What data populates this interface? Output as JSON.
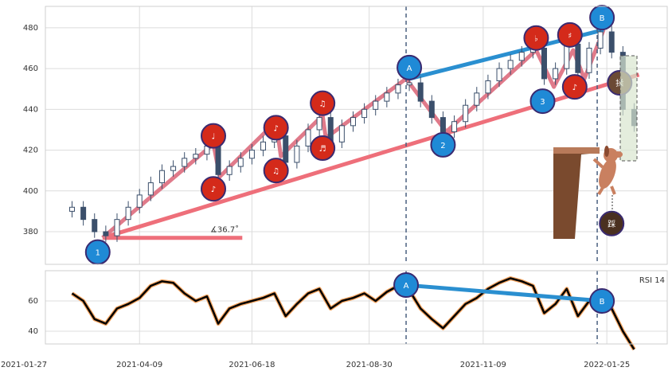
{
  "chart_data": [
    {
      "type": "candlestick",
      "color": "#3b4f6b",
      "xlim": [
        "2021-01-27",
        "2022-02-14"
      ],
      "ylim": [
        364,
        490.5
      ],
      "yticks": [
        380,
        400,
        420,
        440,
        460,
        480
      ],
      "grid": true,
      "x": [
        "2021-02-26",
        "2021-03-05",
        "2021-03-12",
        "2021-03-19",
        "2021-03-26",
        "2021-04-02",
        "2021-04-09",
        "2021-04-16",
        "2021-04-23",
        "2021-04-30",
        "2021-05-07",
        "2021-05-14",
        "2021-05-21",
        "2021-05-28",
        "2021-06-04",
        "2021-06-11",
        "2021-06-18",
        "2021-06-25",
        "2021-07-02",
        "2021-07-09",
        "2021-07-16",
        "2021-07-23",
        "2021-07-30",
        "2021-08-06",
        "2021-08-13",
        "2021-08-20",
        "2021-08-27",
        "2021-09-03",
        "2021-09-10",
        "2021-09-17",
        "2021-09-24",
        "2021-10-01",
        "2021-10-08",
        "2021-10-15",
        "2021-10-22",
        "2021-10-29",
        "2021-11-05",
        "2021-11-12",
        "2021-11-19",
        "2021-11-26",
        "2021-12-03",
        "2021-12-10",
        "2021-12-17",
        "2021-12-24",
        "2021-12-31",
        "2022-01-07",
        "2022-01-14",
        "2022-01-21",
        "2022-01-28",
        "2022-02-04",
        "2022-02-11"
      ],
      "open": [
        390,
        392,
        386,
        380,
        378,
        386,
        392,
        398,
        404,
        410,
        412,
        416,
        418,
        422,
        408,
        412,
        416,
        420,
        424,
        427,
        414,
        422,
        430,
        436,
        424,
        432,
        436,
        440,
        444,
        448,
        452,
        453,
        444,
        436,
        429,
        434,
        442,
        448,
        454,
        460,
        464,
        468,
        470,
        455,
        460,
        472,
        458,
        470,
        478,
        468,
        440
      ],
      "high": [
        395,
        395,
        389,
        383,
        389,
        395,
        401,
        407,
        413,
        415,
        419,
        421,
        425,
        425,
        415,
        419,
        423,
        427,
        430,
        430,
        425,
        433,
        439,
        439,
        435,
        439,
        443,
        447,
        451,
        455,
        456,
        456,
        447,
        439,
        437,
        445,
        451,
        457,
        463,
        467,
        471,
        473,
        473,
        463,
        475,
        475,
        473,
        481,
        481,
        471,
        443
      ],
      "low": [
        387,
        383,
        377,
        375,
        375,
        383,
        389,
        395,
        401,
        407,
        409,
        413,
        415,
        405,
        405,
        409,
        413,
        417,
        421,
        411,
        411,
        419,
        427,
        421,
        421,
        429,
        433,
        437,
        441,
        445,
        449,
        441,
        433,
        426,
        426,
        431,
        439,
        445,
        451,
        457,
        461,
        465,
        452,
        452,
        457,
        455,
        455,
        467,
        465,
        437,
        429
      ],
      "close": [
        392,
        386,
        380,
        378,
        386,
        392,
        398,
        404,
        410,
        412,
        416,
        418,
        422,
        408,
        412,
        416,
        420,
        424,
        427,
        414,
        422,
        430,
        436,
        424,
        432,
        436,
        440,
        444,
        448,
        452,
        453,
        444,
        436,
        429,
        434,
        442,
        448,
        454,
        460,
        464,
        468,
        470,
        455,
        460,
        472,
        458,
        470,
        478,
        468,
        440,
        432
      ],
      "vlines": [
        "2021-09-22",
        "2022-01-19"
      ],
      "trend_lines": [
        {
          "color": "#ee6f7a",
          "points": [
            {
              "x": "2021-03-17",
              "y": 377
            },
            {
              "x": "2022-02-14",
              "y": 457
            }
          ]
        },
        {
          "color": "#ee6f7a",
          "points": [
            {
              "x": "2021-03-17",
              "y": 377
            },
            {
              "x": "2021-06-12",
              "y": 377
            }
          ]
        },
        {
          "color": "#e07a8a",
          "points": [
            {
              "x": "2021-03-17",
              "y": 377
            },
            {
              "x": "2021-05-25",
              "y": 423
            },
            {
              "x": "2021-05-29",
              "y": 407
            },
            {
              "x": "2021-07-03",
              "y": 434
            },
            {
              "x": "2021-07-06",
              "y": 417
            },
            {
              "x": "2021-08-01",
              "y": 437
            },
            {
              "x": "2021-08-03",
              "y": 426
            },
            {
              "x": "2021-09-22",
              "y": 455
            },
            {
              "x": "2021-10-17",
              "y": 429
            },
            {
              "x": "2021-12-12",
              "y": 469
            },
            {
              "x": "2021-12-23",
              "y": 451
            },
            {
              "x": "2022-01-04",
              "y": 469
            },
            {
              "x": "2022-01-11",
              "y": 455
            },
            {
              "x": "2022-01-23",
              "y": 479
            }
          ]
        },
        {
          "color": "#2a8fd0",
          "points": [
            {
              "x": "2021-09-24",
              "y": 455
            },
            {
              "x": "2022-01-23",
              "y": 479
            }
          ]
        }
      ],
      "annotation": {
        "text": "∡36.7˚",
        "x": "2021-05-23",
        "y": 381,
        "color": "#ee6f7a"
      },
      "markers": [
        {
          "label": "1",
          "x": "2021-03-14",
          "y": 370,
          "color": "#1f8ad6"
        },
        {
          "label": "♩",
          "x": "2021-05-25",
          "y": 427,
          "color": "#d42a1a"
        },
        {
          "label": "♪",
          "x": "2021-05-25",
          "y": 401,
          "color": "#d42a1a"
        },
        {
          "label": "♪",
          "x": "2021-07-03",
          "y": 431,
          "color": "#d42a1a"
        },
        {
          "label": "♫",
          "x": "2021-07-03",
          "y": 410,
          "color": "#d42a1a"
        },
        {
          "label": "♫",
          "x": "2021-08-01",
          "y": 443,
          "color": "#d42a1a"
        },
        {
          "label": "♬",
          "x": "2021-08-01",
          "y": 421,
          "color": "#d42a1a"
        },
        {
          "label": "A",
          "x": "2021-09-24",
          "y": 460.5,
          "color": "#1f8ad6"
        },
        {
          "label": "2",
          "x": "2021-10-15",
          "y": 422.6,
          "color": "#1f8ad6"
        },
        {
          "label": "3",
          "x": "2021-12-16",
          "y": 444,
          "color": "#1f8ad6"
        },
        {
          "label": "♭",
          "x": "2021-12-12",
          "y": 475,
          "color": "#d42a1a"
        },
        {
          "label": "♯",
          "x": "2022-01-02",
          "y": 476.5,
          "color": "#d42a1a"
        },
        {
          "label": "♪",
          "x": "2022-01-05",
          "y": 451,
          "color": "#d42a1a"
        },
        {
          "label": "B",
          "x": "2022-01-22",
          "y": 485,
          "color": "#1f8ad6"
        },
        {
          "label": "揉",
          "x": "2022-02-02",
          "y": 453,
          "color": "#6b4a35"
        },
        {
          "label": "踩",
          "x": "2022-01-28",
          "y": 384,
          "color": "#4a3020"
        }
      ]
    },
    {
      "type": "line",
      "label": "RSI 14",
      "color": "#000000",
      "outline": "#f4a460",
      "xlim": [
        "2021-01-27",
        "2022-02-14"
      ],
      "ylim": [
        31.6,
        80
      ],
      "yticks": [
        40,
        60
      ],
      "grid": true,
      "xticks": [
        "2021-01-27",
        "2021-04-09",
        "2021-06-18",
        "2021-08-30",
        "2021-11-09",
        "2022-01-25"
      ],
      "values": [
        65,
        60,
        48,
        45,
        55,
        58,
        62,
        70,
        73,
        72,
        65,
        60,
        63,
        45,
        55,
        58,
        60,
        62,
        65,
        50,
        58,
        65,
        68,
        55,
        60,
        62,
        65,
        60,
        66,
        70,
        67,
        55,
        48,
        42,
        50,
        58,
        62,
        68,
        72,
        75,
        73,
        70,
        52,
        58,
        68,
        50,
        60,
        65,
        55,
        40,
        28
      ],
      "vlines": [
        "2021-09-22",
        "2022-01-19"
      ],
      "trend_lines": [
        {
          "color": "#2a8fd0",
          "points": [
            {
              "x": "2021-09-22",
              "y": 70.5
            },
            {
              "x": "2022-01-22",
              "y": 60
            }
          ]
        }
      ],
      "markers": [
        {
          "label": "A",
          "x": "2021-09-22",
          "y": 70.5,
          "color": "#1f8ad6"
        },
        {
          "label": "B",
          "x": "2022-01-22",
          "y": 60,
          "color": "#1f8ad6"
        }
      ]
    }
  ]
}
